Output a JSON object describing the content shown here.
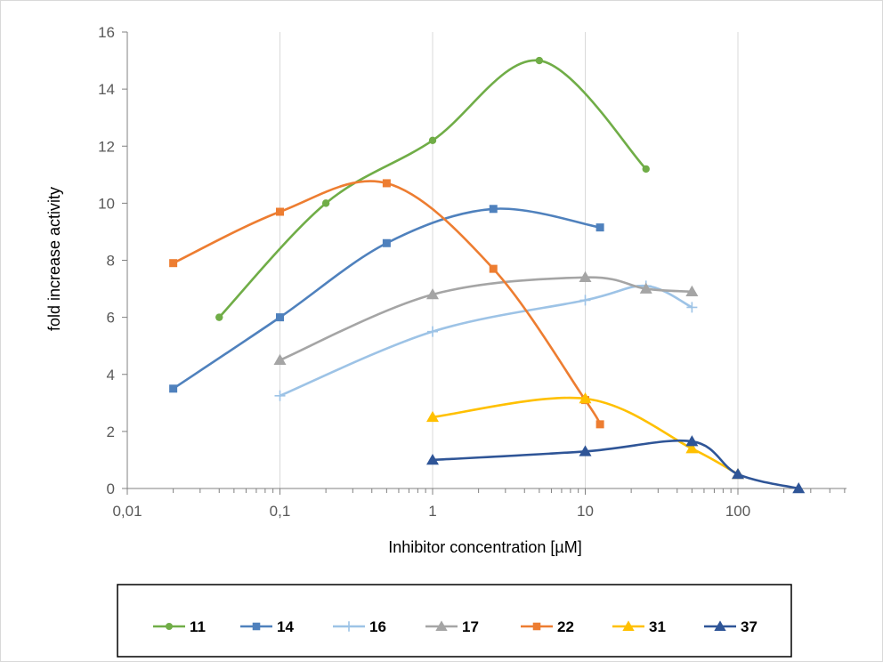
{
  "chart_data": {
    "type": "line",
    "title": "",
    "xlabel": "Inhibitor concentration [µM]",
    "ylabel": "fold increase activity",
    "xscale": "log",
    "xlim": [
      0.01,
      500
    ],
    "ylim": [
      0,
      16
    ],
    "x_ticks": [
      {
        "value": 0.01,
        "label": "0,01"
      },
      {
        "value": 0.1,
        "label": "0,1"
      },
      {
        "value": 1,
        "label": "1"
      },
      {
        "value": 10,
        "label": "10"
      },
      {
        "value": 100,
        "label": "100"
      }
    ],
    "y_ticks": [
      {
        "value": 0,
        "label": "0"
      },
      {
        "value": 2,
        "label": "2"
      },
      {
        "value": 4,
        "label": "4"
      },
      {
        "value": 6,
        "label": "6"
      },
      {
        "value": 8,
        "label": "8"
      },
      {
        "value": 10,
        "label": "10"
      },
      {
        "value": 12,
        "label": "12"
      },
      {
        "value": 14,
        "label": "14"
      },
      {
        "value": 16,
        "label": "16"
      }
    ],
    "grid": "vertical gridlines at decades",
    "legend_position": "bottom",
    "series": [
      {
        "name": "11",
        "color": "#70AD47",
        "marker": "circle",
        "x": [
          0.04,
          0.2,
          1,
          5,
          25
        ],
        "y": [
          6.0,
          10.0,
          12.2,
          15.0,
          11.2
        ]
      },
      {
        "name": "14",
        "color": "#4F81BD",
        "marker": "square",
        "x": [
          0.02,
          0.1,
          0.5,
          2.5,
          12.5
        ],
        "y": [
          3.5,
          6.0,
          8.6,
          9.8,
          9.15
        ]
      },
      {
        "name": "16",
        "color": "#9DC3E6",
        "marker": "plus",
        "x": [
          0.1,
          1,
          10,
          25,
          50
        ],
        "y": [
          3.25,
          5.5,
          6.6,
          7.1,
          6.35
        ]
      },
      {
        "name": "17",
        "color": "#A5A5A5",
        "marker": "triangle",
        "x": [
          0.1,
          1,
          10,
          25,
          50
        ],
        "y": [
          4.5,
          6.8,
          7.4,
          7.0,
          6.9
        ]
      },
      {
        "name": "22",
        "color": "#ED7D31",
        "marker": "square",
        "x": [
          0.02,
          0.1,
          0.5,
          2.5,
          10,
          12.5
        ],
        "y": [
          7.9,
          9.7,
          10.7,
          7.7,
          3.1,
          2.25
        ]
      },
      {
        "name": "31",
        "color": "#FFC000",
        "marker": "triangle",
        "x": [
          1,
          10,
          50,
          100
        ],
        "y": [
          2.5,
          3.15,
          1.4,
          0.5
        ]
      },
      {
        "name": "37",
        "color": "#2F5597",
        "marker": "triangle",
        "x": [
          1,
          10,
          50,
          100,
          250
        ],
        "y": [
          1.0,
          1.3,
          1.65,
          0.5,
          0.0
        ]
      }
    ]
  }
}
